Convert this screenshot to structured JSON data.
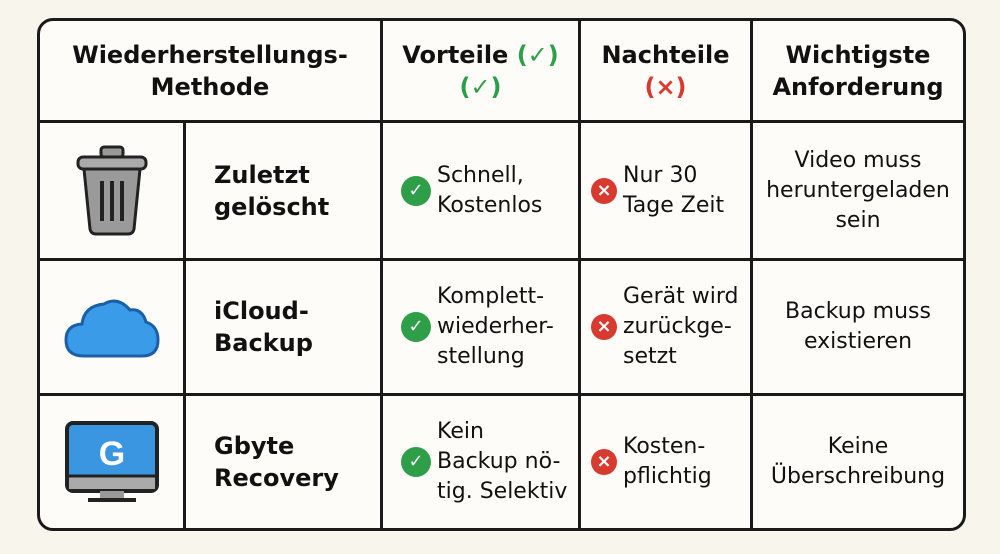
{
  "header": {
    "method": [
      "Wiederherstellungs-",
      "Methode"
    ],
    "pros": {
      "label": "Vorteile",
      "mark_line1": "(✓)",
      "mark_line2": "(✓)"
    },
    "cons": {
      "label": "Nachteile",
      "mark": "(×)"
    },
    "requirement": [
      "Wichtigste",
      "Anforderung"
    ]
  },
  "rows": [
    {
      "icon": "trash-icon",
      "name": [
        "Zuletzt",
        "gelöscht"
      ],
      "pros": [
        "Schnell,",
        "Kostenlos"
      ],
      "cons": [
        "Nur 30",
        "Tage Zeit"
      ],
      "requirement": [
        "Video muss",
        "heruntergeladen",
        "sein"
      ]
    },
    {
      "icon": "cloud-icon",
      "name": [
        "iCloud-",
        "Backup"
      ],
      "pros": [
        "Komplett-",
        "wiederher-",
        "stellung"
      ],
      "cons": [
        "Gerät wird",
        "zurückge-",
        "setzt"
      ],
      "requirement": [
        "Backup muss",
        "existieren"
      ]
    },
    {
      "icon": "monitor-icon",
      "name": [
        "Gbyte",
        "Recovery"
      ],
      "pros": [
        "Kein",
        "Backup nö-",
        "tig. Selektiv"
      ],
      "cons": [
        "Kosten-",
        "pflichtig"
      ],
      "requirement": [
        "Keine",
        "Überschreibung"
      ],
      "icon_letter": "G"
    }
  ],
  "colors": {
    "check": "#2e9e48",
    "cross": "#d93a30",
    "cloud": "#3a9be8",
    "screen": "#3a96e0"
  }
}
